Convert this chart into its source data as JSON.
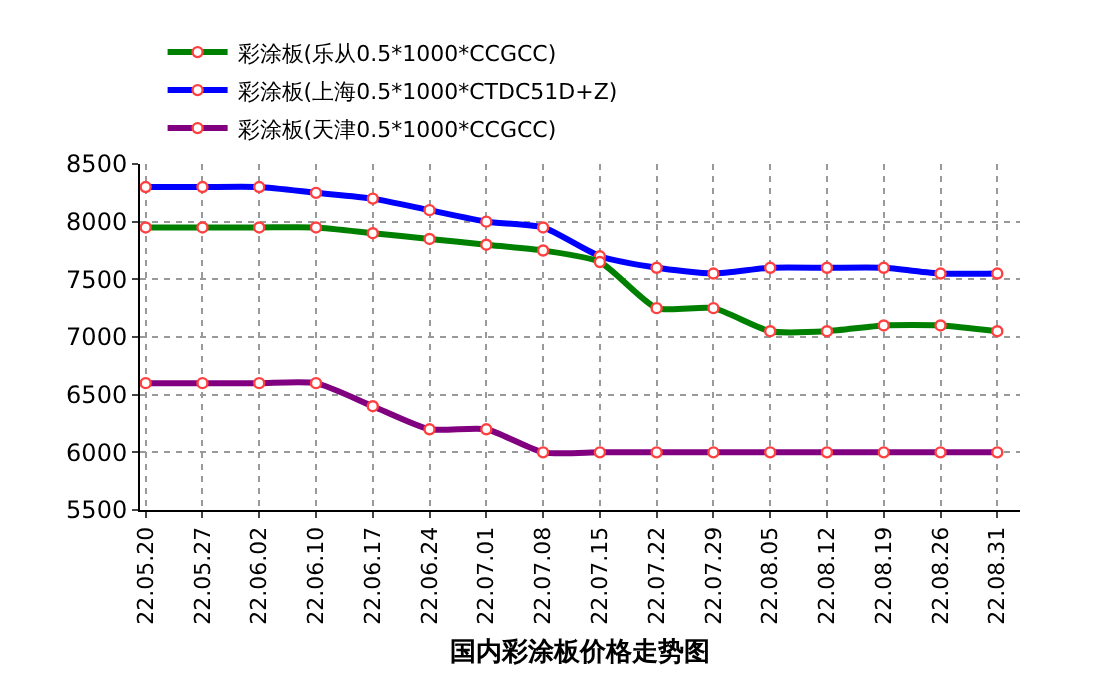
{
  "chart_data": {
    "type": "line",
    "title": "国内彩涂板价格走势图",
    "categories": [
      "22.05.20",
      "22.05.27",
      "22.06.02",
      "22.06.10",
      "22.06.17",
      "22.06.24",
      "22.07.01",
      "22.07.08",
      "22.07.15",
      "22.07.22",
      "22.07.29",
      "22.08.05",
      "22.08.12",
      "22.08.19",
      "22.08.26",
      "22.08.31"
    ],
    "series": [
      {
        "name": "彩涂板(乐从0.5*1000*CCGCC)",
        "color": "#008000",
        "values": [
          7950,
          7950,
          7950,
          7950,
          7900,
          7850,
          7800,
          7750,
          7650,
          7250,
          7250,
          7050,
          7050,
          7100,
          7100,
          7050
        ]
      },
      {
        "name": "彩涂板(上海0.5*1000*CTDC51D+Z)",
        "color": "#0000ff",
        "values": [
          8300,
          8300,
          8300,
          8250,
          8200,
          8100,
          8000,
          7950,
          7700,
          7600,
          7550,
          7600,
          7600,
          7600,
          7550,
          7550
        ]
      },
      {
        "name": "彩涂板(天津0.5*1000*CCGCC)",
        "color": "#800080",
        "values": [
          6600,
          6600,
          6600,
          6600,
          6400,
          6200,
          6200,
          6000,
          6000,
          6000,
          6000,
          6000,
          6000,
          6000,
          6000,
          6000
        ]
      }
    ],
    "ylim": [
      5500,
      8500
    ],
    "yticks": [
      5500,
      6000,
      6500,
      7000,
      7500,
      8000,
      8500
    ],
    "grid": true,
    "legend": "top",
    "marker": "circle",
    "line_style": "solid"
  }
}
